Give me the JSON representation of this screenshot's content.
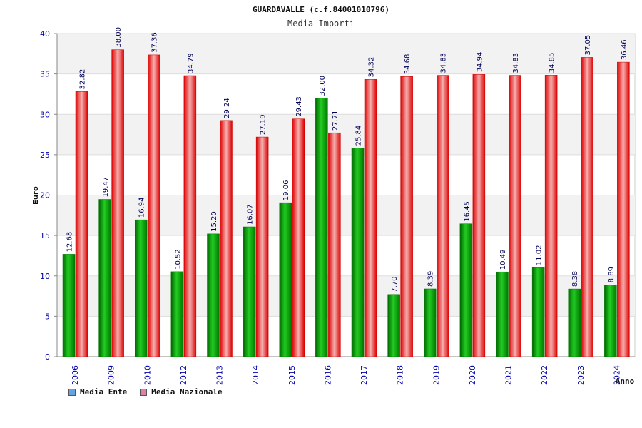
{
  "chart_data": {
    "type": "bar",
    "title": "GUARDAVALLE (c.f.84001010796)",
    "subtitle": "Media Importi",
    "xlabel": "Anno",
    "ylabel": "Euro",
    "ylim": [
      0,
      40
    ],
    "yticks": [
      0,
      5,
      10,
      15,
      20,
      25,
      30,
      35,
      40
    ],
    "grid": true,
    "legend_position": "bottom-left",
    "categories": [
      "2006",
      "2009",
      "2010",
      "2012",
      "2013",
      "2014",
      "2015",
      "2016",
      "2017",
      "2018",
      "2019",
      "2020",
      "2021",
      "2022",
      "2023",
      "2024"
    ],
    "series": [
      {
        "name": "Media Ente",
        "color": "#00aa00",
        "legend_color": "#66a3e0",
        "values": [
          12.68,
          19.47,
          16.94,
          10.52,
          15.2,
          16.07,
          19.06,
          32.0,
          25.84,
          7.7,
          8.39,
          16.45,
          10.49,
          11.02,
          8.38,
          8.89
        ],
        "labels": [
          "12.68",
          "19.47",
          "16.94",
          "10.52",
          "15.20",
          "16.07",
          "19.06",
          "32.00",
          "25.84",
          "7.70",
          "8.39",
          "16.45",
          "10.49",
          "11.02",
          "8.38",
          "8.89"
        ]
      },
      {
        "name": "Media Nazionale",
        "color": "#ee1111",
        "legend_color": "#e080a8",
        "values": [
          32.82,
          38.0,
          37.36,
          34.79,
          29.24,
          27.19,
          29.43,
          27.71,
          34.32,
          34.68,
          34.83,
          34.94,
          34.83,
          34.85,
          37.05,
          36.46
        ],
        "labels": [
          "32.82",
          "38.00",
          "37.36",
          "34.79",
          "29.24",
          "27.19",
          "29.43",
          "27.71",
          "34.32",
          "34.68",
          "34.83",
          "34.94",
          "34.83",
          "34.85",
          "37.05",
          "36.46"
        ]
      }
    ]
  }
}
